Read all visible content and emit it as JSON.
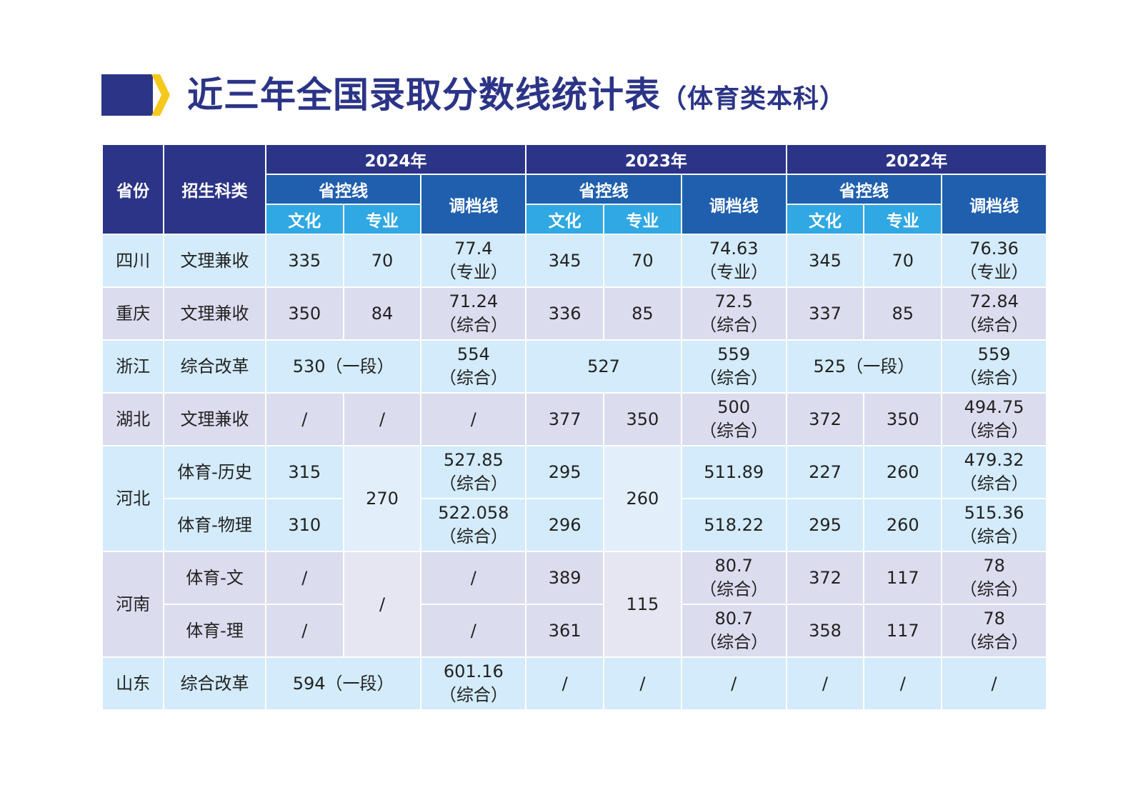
{
  "title": {
    "main": "近三年全国录取分数线统计表",
    "sub": "（体育类本科）"
  },
  "colors": {
    "header_dark": "#2c3487",
    "header_mid": "#1f5fae",
    "header_light": "#2fa8e3",
    "accent_yellow": "#f5c81c",
    "row_blue": "#d3ebfa",
    "row_purple": "#dcdcef"
  },
  "headers": {
    "province": "省份",
    "category": "招生科类",
    "years": [
      "2024年",
      "2023年",
      "2022年"
    ],
    "control_line": "省控线",
    "filing_line": "调档线",
    "culture": "文化",
    "major": "专业"
  },
  "rows": {
    "sichuan": {
      "province": "四川",
      "category": "文理兼收",
      "y2024": {
        "culture": "335",
        "major": "70",
        "filing": [
          "77.4",
          "（专业）"
        ]
      },
      "y2023": {
        "culture": "345",
        "major": "70",
        "filing": [
          "74.63",
          "（专业）"
        ]
      },
      "y2022": {
        "culture": "345",
        "major": "70",
        "filing": [
          "76.36",
          "（专业）"
        ]
      }
    },
    "chongqing": {
      "province": "重庆",
      "category": "文理兼收",
      "y2024": {
        "culture": "350",
        "major": "84",
        "filing": [
          "71.24",
          "（综合）"
        ]
      },
      "y2023": {
        "culture": "336",
        "major": "85",
        "filing": [
          "72.5",
          "（综合）"
        ]
      },
      "y2022": {
        "culture": "337",
        "major": "85",
        "filing": [
          "72.84",
          "（综合）"
        ]
      }
    },
    "zhejiang": {
      "province": "浙江",
      "category": "综合改革",
      "y2024": {
        "merged": "530（一段）",
        "filing": [
          "554",
          "（综合）"
        ]
      },
      "y2023": {
        "merged": "527",
        "filing": [
          "559",
          "（综合）"
        ]
      },
      "y2022": {
        "merged": "525（一段）",
        "filing": [
          "559",
          "（综合）"
        ]
      }
    },
    "hubei": {
      "province": "湖北",
      "category": "文理兼收",
      "y2024": {
        "culture": "/",
        "major": "/",
        "filing": [
          "/"
        ]
      },
      "y2023": {
        "culture": "377",
        "major": "350",
        "filing": [
          "500",
          "（综合）"
        ]
      },
      "y2022": {
        "culture": "372",
        "major": "350",
        "filing": [
          "494.75",
          "（综合）"
        ]
      }
    },
    "hebei": {
      "province": "河北",
      "y2024_major": "270",
      "y2023_major": "260",
      "history": {
        "category": "体育-历史",
        "y2024": {
          "culture": "315",
          "filing": [
            "527.85",
            "（综合）"
          ]
        },
        "y2023": {
          "culture": "295",
          "filing": [
            "511.89"
          ]
        },
        "y2022": {
          "culture": "227",
          "major": "260",
          "filing": [
            "479.32",
            "（综合）"
          ]
        }
      },
      "physics": {
        "category": "体育-物理",
        "y2024": {
          "culture": "310",
          "filing": [
            "522.058",
            "（综合）"
          ]
        },
        "y2023": {
          "culture": "296",
          "filing": [
            "518.22"
          ]
        },
        "y2022": {
          "culture": "295",
          "major": "260",
          "filing": [
            "515.36",
            "（综合）"
          ]
        }
      }
    },
    "henan": {
      "province": "河南",
      "y2024_major": "/",
      "y2023_major": "115",
      "liberal": {
        "category": "体育-文",
        "y2024": {
          "culture": "/",
          "filing": [
            "/"
          ]
        },
        "y2023": {
          "culture": "389",
          "filing": [
            "80.7",
            "（综合）"
          ]
        },
        "y2022": {
          "culture": "372",
          "major": "117",
          "filing": [
            "78",
            "（综合）"
          ]
        }
      },
      "science": {
        "category": "体育-理",
        "y2024": {
          "culture": "/",
          "filing": [
            "/"
          ]
        },
        "y2023": {
          "culture": "361",
          "filing": [
            "80.7",
            "（综合）"
          ]
        },
        "y2022": {
          "culture": "358",
          "major": "117",
          "filing": [
            "78",
            "（综合）"
          ]
        }
      }
    },
    "shandong": {
      "province": "山东",
      "category": "综合改革",
      "y2024": {
        "merged": "594（一段）",
        "filing": [
          "601.16",
          "（综合）"
        ]
      },
      "y2023": {
        "culture": "/",
        "major": "/",
        "filing": [
          "/"
        ]
      },
      "y2022": {
        "culture": "/",
        "major": "/",
        "filing": [
          "/"
        ]
      }
    }
  }
}
